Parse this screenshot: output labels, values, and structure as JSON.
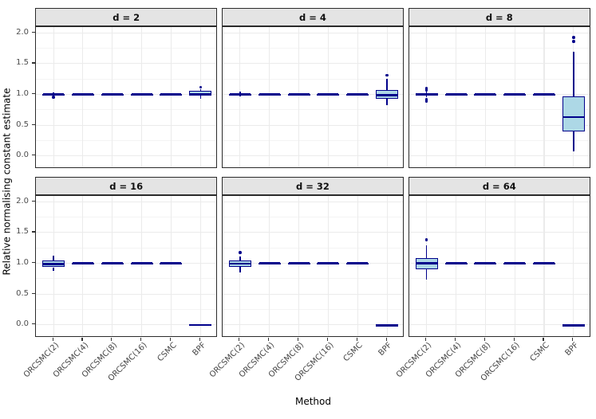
{
  "chart_data": {
    "type": "boxplot",
    "facet_variable": "d",
    "xlabel": "Method",
    "ylabel": "Relative normalising constant estimate",
    "categories": [
      "ORCSMC(2)",
      "ORCSMC(4)",
      "ORCSMC(8)",
      "ORCSMC(16)",
      "CSMC",
      "BPF"
    ],
    "yticks": [
      2.0,
      1.5,
      1.0,
      0.5,
      0.0
    ],
    "ytick_labels": [
      "2.0",
      "1.5",
      "1.0",
      "0.5",
      "0.0"
    ],
    "yminor": [
      0.25,
      0.75,
      1.25,
      1.75
    ],
    "ylim": [
      -0.21,
      2.095
    ],
    "grid": "major-and-minor-horizontal, major-vertical",
    "legend": "none",
    "colors": {
      "box_fill": "#ADD8E6",
      "box_border": "#00008B",
      "strip_bg": "#e4e4e4",
      "panel_border": "#2b2b2b",
      "grid_major": "#ebebeb",
      "grid_minor": "#f4f4f4",
      "tick_text": "#4d4d4d"
    },
    "facets": [
      {
        "label": "d = 2",
        "boxes": [
          {
            "method": "ORCSMC(2)",
            "lo": 0.97,
            "q1": 0.993,
            "med": 1.0,
            "q3": 1.007,
            "hi": 1.028,
            "out": [
              0.952
            ]
          },
          {
            "method": "ORCSMC(4)",
            "lo": 0.996,
            "q1": 0.999,
            "med": 1.0,
            "q3": 1.001,
            "hi": 1.004,
            "out": []
          },
          {
            "method": "ORCSMC(8)",
            "lo": 0.996,
            "q1": 0.999,
            "med": 1.0,
            "q3": 1.001,
            "hi": 1.004,
            "out": []
          },
          {
            "method": "ORCSMC(16)",
            "lo": 0.996,
            "q1": 0.999,
            "med": 1.0,
            "q3": 1.001,
            "hi": 1.004,
            "out": []
          },
          {
            "method": "CSMC",
            "lo": 0.996,
            "q1": 0.999,
            "med": 1.0,
            "q3": 1.001,
            "hi": 1.004,
            "out": []
          },
          {
            "method": "BPF",
            "lo": 0.935,
            "q1": 0.984,
            "med": 1.008,
            "q3": 1.053,
            "hi": 1.085,
            "out": [
              1.118
            ]
          }
        ]
      },
      {
        "label": "d = 4",
        "boxes": [
          {
            "method": "ORCSMC(2)",
            "lo": 0.962,
            "q1": 0.99,
            "med": 1.0,
            "q3": 1.011,
            "hi": 1.04,
            "out": []
          },
          {
            "method": "ORCSMC(4)",
            "lo": 0.996,
            "q1": 0.999,
            "med": 1.0,
            "q3": 1.001,
            "hi": 1.004,
            "out": []
          },
          {
            "method": "ORCSMC(8)",
            "lo": 0.996,
            "q1": 0.999,
            "med": 1.0,
            "q3": 1.001,
            "hi": 1.004,
            "out": []
          },
          {
            "method": "ORCSMC(16)",
            "lo": 0.996,
            "q1": 0.999,
            "med": 1.0,
            "q3": 1.001,
            "hi": 1.004,
            "out": []
          },
          {
            "method": "CSMC",
            "lo": 0.996,
            "q1": 0.999,
            "med": 1.0,
            "q3": 1.001,
            "hi": 1.004,
            "out": []
          },
          {
            "method": "BPF",
            "lo": 0.822,
            "q1": 0.924,
            "med": 0.988,
            "q3": 1.068,
            "hi": 1.248,
            "out": [
              1.31
            ]
          }
        ]
      },
      {
        "label": "d = 8",
        "boxes": [
          {
            "method": "ORCSMC(2)",
            "lo": 0.952,
            "q1": 0.981,
            "med": 1.0,
            "q3": 1.024,
            "hi": 1.048,
            "out": [
              1.098,
              1.072,
              0.916,
              0.888
            ]
          },
          {
            "method": "ORCSMC(4)",
            "lo": 0.996,
            "q1": 0.999,
            "med": 1.0,
            "q3": 1.001,
            "hi": 1.004,
            "out": []
          },
          {
            "method": "ORCSMC(8)",
            "lo": 0.996,
            "q1": 0.999,
            "med": 1.0,
            "q3": 1.001,
            "hi": 1.004,
            "out": []
          },
          {
            "method": "ORCSMC(16)",
            "lo": 0.996,
            "q1": 0.999,
            "med": 1.0,
            "q3": 1.001,
            "hi": 1.004,
            "out": []
          },
          {
            "method": "CSMC",
            "lo": 0.996,
            "q1": 0.999,
            "med": 1.0,
            "q3": 1.001,
            "hi": 1.004,
            "out": []
          },
          {
            "method": "BPF",
            "lo": 0.07,
            "q1": 0.4,
            "med": 0.63,
            "q3": 0.965,
            "hi": 1.7,
            "out": [
              1.862,
              1.925
            ]
          }
        ]
      },
      {
        "label": "d = 16",
        "boxes": [
          {
            "method": "ORCSMC(2)",
            "lo": 0.872,
            "q1": 0.936,
            "med": 0.99,
            "q3": 1.044,
            "hi": 1.128,
            "out": []
          },
          {
            "method": "ORCSMC(4)",
            "lo": 0.996,
            "q1": 0.999,
            "med": 1.0,
            "q3": 1.001,
            "hi": 1.004,
            "out": []
          },
          {
            "method": "ORCSMC(8)",
            "lo": 0.996,
            "q1": 0.999,
            "med": 1.0,
            "q3": 1.001,
            "hi": 1.004,
            "out": []
          },
          {
            "method": "ORCSMC(16)",
            "lo": 0.996,
            "q1": 0.999,
            "med": 1.0,
            "q3": 1.001,
            "hi": 1.004,
            "out": []
          },
          {
            "method": "CSMC",
            "lo": 0.996,
            "q1": 0.999,
            "med": 1.0,
            "q3": 1.001,
            "hi": 1.004,
            "out": []
          },
          {
            "method": "BPF",
            "lo": -0.018,
            "q1": -0.018,
            "med": 0.0,
            "q3": 0.012,
            "hi": 0.012,
            "out": []
          }
        ]
      },
      {
        "label": "d = 32",
        "boxes": [
          {
            "method": "ORCSMC(2)",
            "lo": 0.858,
            "q1": 0.938,
            "med": 0.995,
            "q3": 1.05,
            "hi": 1.112,
            "out": [
              1.172
            ]
          },
          {
            "method": "ORCSMC(4)",
            "lo": 0.996,
            "q1": 0.999,
            "med": 1.0,
            "q3": 1.001,
            "hi": 1.004,
            "out": []
          },
          {
            "method": "ORCSMC(8)",
            "lo": 0.996,
            "q1": 0.999,
            "med": 1.0,
            "q3": 1.001,
            "hi": 1.004,
            "out": []
          },
          {
            "method": "ORCSMC(16)",
            "lo": 0.996,
            "q1": 0.999,
            "med": 1.0,
            "q3": 1.001,
            "hi": 1.004,
            "out": []
          },
          {
            "method": "CSMC",
            "lo": 0.996,
            "q1": 0.999,
            "med": 1.0,
            "q3": 1.001,
            "hi": 1.004,
            "out": []
          },
          {
            "method": "BPF",
            "lo": -0.025,
            "q1": -0.025,
            "med": -0.005,
            "q3": 0.008,
            "hi": 0.008,
            "out": []
          }
        ]
      },
      {
        "label": "d = 64",
        "boxes": [
          {
            "method": "ORCSMC(2)",
            "lo": 0.74,
            "q1": 0.908,
            "med": 1.0,
            "q3": 1.088,
            "hi": 1.29,
            "out": [
              1.385
            ]
          },
          {
            "method": "ORCSMC(4)",
            "lo": 0.996,
            "q1": 0.999,
            "med": 1.0,
            "q3": 1.001,
            "hi": 1.004,
            "out": []
          },
          {
            "method": "ORCSMC(8)",
            "lo": 0.996,
            "q1": 0.999,
            "med": 1.0,
            "q3": 1.001,
            "hi": 1.004,
            "out": []
          },
          {
            "method": "ORCSMC(16)",
            "lo": 0.996,
            "q1": 0.999,
            "med": 1.0,
            "q3": 1.001,
            "hi": 1.004,
            "out": []
          },
          {
            "method": "CSMC",
            "lo": 0.996,
            "q1": 0.999,
            "med": 1.0,
            "q3": 1.001,
            "hi": 1.004,
            "out": []
          },
          {
            "method": "BPF",
            "lo": -0.025,
            "q1": -0.025,
            "med": -0.005,
            "q3": 0.008,
            "hi": 0.008,
            "out": []
          }
        ]
      }
    ]
  }
}
